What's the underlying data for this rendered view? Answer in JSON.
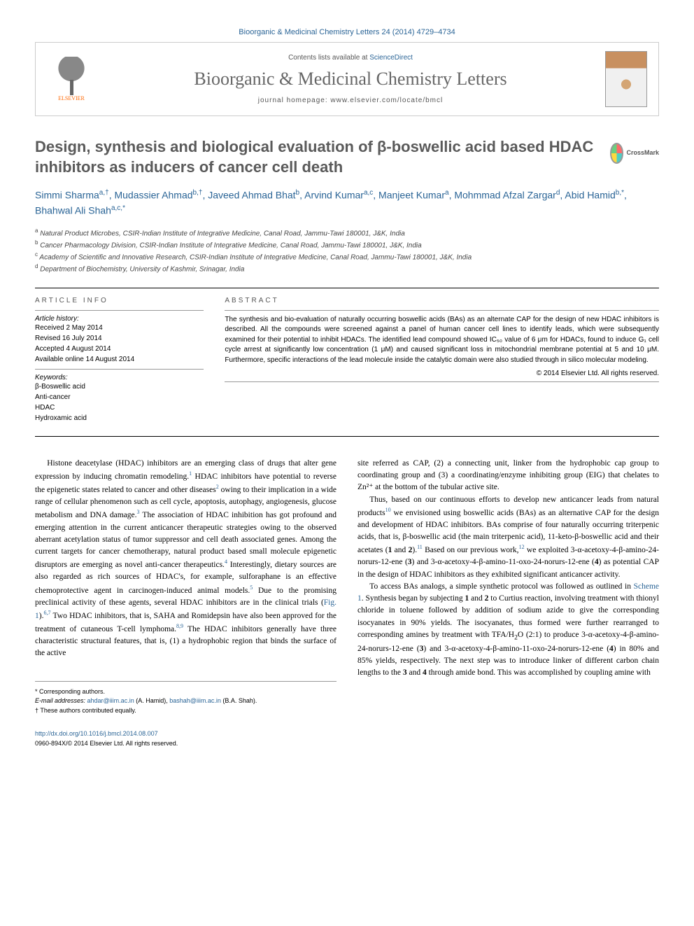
{
  "citation": "Bioorganic & Medicinal Chemistry Letters 24 (2014) 4729–4734",
  "header": {
    "contents_prefix": "Contents lists available at ",
    "contents_link": "ScienceDirect",
    "journal": "Bioorganic & Medicinal Chemistry Letters",
    "homepage_prefix": "journal homepage: ",
    "homepage_url": "www.elsevier.com/locate/bmcl",
    "publisher": "ELSEVIER"
  },
  "title": "Design, synthesis and biological evaluation of β-boswellic acid based HDAC inhibitors as inducers of cancer cell death",
  "crossmark_label": "CrossMark",
  "authors_html": "Simmi Sharma<span class='sup'>a,†</span>, Mudassier Ahmad<span class='sup'>b,†</span>, Javeed Ahmad Bhat<span class='sup'>b</span>, Arvind Kumar<span class='sup'>a,c</span>, Manjeet Kumar<span class='sup'>a</span>, Mohmmad Afzal Zargar<span class='sup'>d</span>, Abid Hamid<span class='sup'>b,*</span>, Bhahwal Ali Shah<span class='sup'>a,c,*</span>",
  "affiliations": [
    {
      "sup": "a",
      "text": "Natural Product Microbes, CSIR-Indian Institute of Integrative Medicine, Canal Road, Jammu-Tawi 180001, J&K, India"
    },
    {
      "sup": "b",
      "text": "Cancer Pharmacology Division, CSIR-Indian Institute of Integrative Medicine, Canal Road, Jammu-Tawi 180001, J&K, India"
    },
    {
      "sup": "c",
      "text": "Academy of Scientific and Innovative Research, CSIR-Indian Institute of Integrative Medicine, Canal Road, Jammu-Tawi 180001, J&K, India"
    },
    {
      "sup": "d",
      "text": "Department of Biochemistry, University of Kashmir, Srinagar, India"
    }
  ],
  "article_info": {
    "heading": "ARTICLE INFO",
    "history_label": "Article history:",
    "history": [
      "Received 2 May 2014",
      "Revised 16 July 2014",
      "Accepted 4 August 2014",
      "Available online 14 August 2014"
    ],
    "keywords_label": "Keywords:",
    "keywords": [
      "β-Boswellic acid",
      "Anti-cancer",
      "HDAC",
      "Hydroxamic acid"
    ]
  },
  "abstract": {
    "heading": "ABSTRACT",
    "text": "The synthesis and bio-evaluation of naturally occurring boswellic acids (BAs) as an alternate CAP for the design of new HDAC inhibitors is described. All the compounds were screened against a panel of human cancer cell lines to identify leads, which were subsequently examined for their potential to inhibit HDACs. The identified lead compound showed IC₅₀ value of 6 μm for HDACs, found to induce G₁ cell cycle arrest at significantly low concentration (1 μM) and caused significant loss in mitochondrial membrane potential at 5 and 10 μM. Furthermore, specific interactions of the lead molecule inside the catalytic domain were also studied through in silico molecular modeling.",
    "copyright": "© 2014 Elsevier Ltd. All rights reserved."
  },
  "body": {
    "col1_p1": "Histone deacetylase (HDAC) inhibitors are an emerging class of drugs that alter gene expression by inducing chromatin remodeling.¹ HDAC inhibitors have potential to reverse the epigenetic states related to cancer and other diseases² owing to their implication in a wide range of cellular phenomenon such as cell cycle, apoptosis, autophagy, angiogenesis, glucose metabolism and DNA damage.³ The association of HDAC inhibition has got profound and emerging attention in the current anticancer therapeutic strategies owing to the observed aberrant acetylation status of tumor suppressor and cell death associated genes. Among the current targets for cancer chemotherapy, natural product based small molecule epigenetic disruptors are emerging as novel anti-cancer therapeutics.⁴ Interestingly, dietary sources are also regarded as rich sources of HDAC's, for example, sulforaphane is an effective chemoprotective agent in carcinogen-induced animal models.⁵ Due to the promising preclinical activity of these agents, several HDAC inhibitors are in the clinical trials (Fig. 1).⁶,⁷ Two HDAC inhibitors, that is, SAHA and Romidepsin have also been approved for the treatment of cutaneous T-cell lymphoma.⁸,⁹ The HDAC inhibitors generally have three characteristic structural features, that is, (1) a hydrophobic region that binds the surface of the active",
    "col2_p1": "site referred as CAP, (2) a connecting unit, linker from the hydrophobic cap group to coordinating group and (3) a coordinating/enzyme inhibiting group (EIG) that chelates to Zn²⁺ at the bottom of the tubular active site.",
    "col2_p2": "Thus, based on our continuous efforts to develop new anticancer leads from natural products¹⁰ we envisioned using boswellic acids (BAs) as an alternative CAP for the design and development of HDAC inhibitors. BAs comprise of four naturally occurring triterpenic acids, that is, β-boswellic acid (the main triterpenic acid), 11-keto-β-boswellic acid and their acetates (1 and 2).¹¹ Based on our previous work,¹² we exploited 3-α-acetoxy-4-β-amino-24-norurs-12-ene (3) and 3-α-acetoxy-4-β-amino-11-oxo-24-norurs-12-ene (4) as potential CAP in the design of HDAC inhibitors as they exhibited significant anticancer activity.",
    "col2_p3": "To access BAs analogs, a simple synthetic protocol was followed as outlined in Scheme 1. Synthesis began by subjecting 1 and 2 to Curtius reaction, involving treatment with thionyl chloride in toluene followed by addition of sodium azide to give the corresponding isocyanates in 90% yields. The isocyanates, thus formed were further rearranged to corresponding amines by treatment with TFA/H₂O (2:1) to produce 3-α-acetoxy-4-β-amino-24-norurs-12-ene (3) and 3-α-acetoxy-4-β-amino-11-oxo-24-norurs-12-ene (4) in 80% and 85% yields, respectively. The next step was to introduce linker of different carbon chain lengths to the 3 and 4 through amide bond. This was accomplished by coupling amine with"
  },
  "footer": {
    "corresponding": "* Corresponding authors.",
    "email_label": "E-mail addresses: ",
    "email1": "ahdar@iiim.ac.in",
    "email1_name": " (A. Hamid), ",
    "email2": "bashah@iiim.ac.in",
    "email2_name": " (B.A. Shah).",
    "equal": "† These authors contributed equally."
  },
  "doi": {
    "url": "http://dx.doi.org/10.1016/j.bmcl.2014.08.007",
    "issn_copyright": "0960-894X/© 2014 Elsevier Ltd. All rights reserved."
  },
  "colors": {
    "link": "#2a6496",
    "title_gray": "#5a5a5a",
    "text": "#000000",
    "divider": "#000000",
    "sub_divider": "#999999"
  }
}
